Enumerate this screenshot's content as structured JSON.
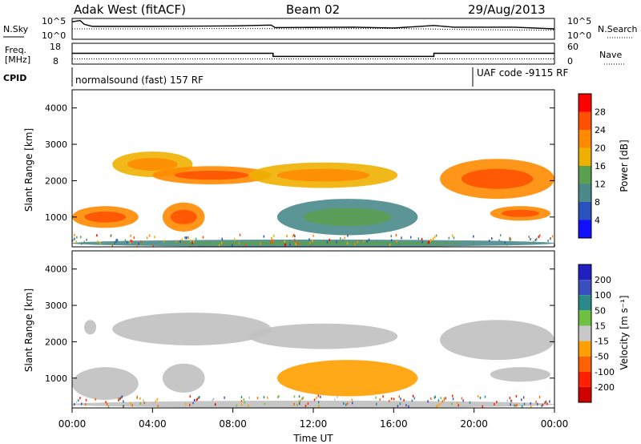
{
  "header": {
    "station": "Adak West (fitACF)",
    "beam": "Beam 02",
    "date": "29/Aug/2013"
  },
  "noise_panel": {
    "left_label": "N.Sky",
    "right_label": "N.Search",
    "left_ticks": [
      "10^5",
      "10^0"
    ],
    "right_ticks": [
      "10^5",
      "10^0"
    ]
  },
  "freq_panel": {
    "left_label_line1": "Freq.",
    "left_label_line2": "[MHz]",
    "right_label": "Nave",
    "left_ticks": [
      "18",
      "8"
    ],
    "right_ticks": [
      "60",
      "0"
    ]
  },
  "cpid_panel": {
    "label": "CPID",
    "segments": [
      {
        "text": "normalsound (fast) 157 RF",
        "start_hour": 0,
        "end_hour": 20
      },
      {
        "text": "UAF code -9115 RF",
        "start_hour": 20,
        "end_hour": 24
      }
    ]
  },
  "time_axis": {
    "label": "Time UT",
    "ticks": [
      "00:00",
      "04:00",
      "08:00",
      "12:00",
      "16:00",
      "20:00",
      "00:00"
    ]
  },
  "colors": {
    "power_scale": [
      "#1010ff",
      "#2a52be",
      "#4a8a8a",
      "#5aa050",
      "#f0b000",
      "#ff8a00",
      "#ff5000",
      "#ff0000"
    ],
    "velocity_scale": [
      "#2020c0",
      "#3a50c0",
      "#2a8a8a",
      "#70c040",
      "#c8c8c8",
      "#ffa000",
      "#ff6000",
      "#ff2000",
      "#d00000"
    ],
    "ground_scatter": "#c0c0c0"
  },
  "chart_data": [
    {
      "type": "line",
      "name": "noise",
      "x_unit": "hour UT",
      "xlim": [
        0,
        24
      ],
      "ylim": [
        0,
        5
      ],
      "y_scale": "log10",
      "series": [
        {
          "name": "N.Sky",
          "x": [
            0,
            0.4,
            0.6,
            1,
            4,
            8,
            9.9,
            10.1,
            14,
            16,
            18,
            19,
            22,
            24
          ],
          "y": [
            4.2,
            4.5,
            3.6,
            3.1,
            3.1,
            3.2,
            3.4,
            2.8,
            2.9,
            2.7,
            3.3,
            2.9,
            2.9,
            2.5
          ]
        },
        {
          "name": "N.Search",
          "x": [
            0,
            4,
            8,
            12,
            16,
            20,
            24
          ],
          "y": [
            2.5,
            2.5,
            2.6,
            2.5,
            2.6,
            2.3,
            2.2
          ]
        }
      ]
    },
    {
      "type": "line",
      "name": "frequency-nave",
      "x_unit": "hour UT",
      "xlim": [
        0,
        24
      ],
      "ylim": [
        8,
        18
      ],
      "y2lim": [
        0,
        60
      ],
      "series": [
        {
          "name": "Freq.",
          "x": [
            0,
            10,
            10,
            18,
            18,
            24
          ],
          "y": [
            13.2,
            13.2,
            11.7,
            11.7,
            13.2,
            13.2
          ]
        },
        {
          "name": "Nave",
          "x": [
            0,
            24
          ],
          "y": [
            10.5,
            10.5
          ]
        }
      ]
    },
    {
      "type": "heatmap",
      "name": "power",
      "ylabel": "Slant Range [km]",
      "xlabel": "Time UT",
      "xlim": [
        0,
        24
      ],
      "ylim": [
        180,
        4500
      ],
      "yticks": [
        1000,
        2000,
        3000,
        4000
      ],
      "colorbar": {
        "label": "Power [dB]",
        "ticks": [
          4,
          8,
          12,
          16,
          20,
          24,
          28
        ],
        "range": [
          0,
          32
        ]
      },
      "regions": [
        {
          "t0": 0.0,
          "t1": 3.3,
          "r0": 700,
          "r1": 1300,
          "value": 22
        },
        {
          "t0": 2.0,
          "t1": 6.0,
          "r0": 2100,
          "r1": 2800,
          "value": 17
        },
        {
          "t0": 4.0,
          "t1": 9.9,
          "r0": 1900,
          "r1": 2400,
          "value": 23
        },
        {
          "t0": 4.5,
          "t1": 6.6,
          "r0": 600,
          "r1": 1400,
          "value": 21
        },
        {
          "t0": 8.8,
          "t1": 16.2,
          "r0": 1800,
          "r1": 2500,
          "value": 16
        },
        {
          "t0": 10.2,
          "t1": 17.2,
          "r0": 500,
          "r1": 1500,
          "value": 8
        },
        {
          "t0": 18.3,
          "t1": 24.0,
          "r0": 1500,
          "r1": 2600,
          "value": 20
        },
        {
          "t0": 20.8,
          "t1": 23.8,
          "r0": 900,
          "r1": 1300,
          "value": 22
        },
        {
          "t0": 0.0,
          "t1": 24.0,
          "r0": 180,
          "r1": 380,
          "value": 10
        }
      ]
    },
    {
      "type": "heatmap",
      "name": "velocity",
      "ylabel": "Slant Range [km]",
      "xlabel": "Time UT",
      "xlim": [
        0,
        24
      ],
      "ylim": [
        180,
        4500
      ],
      "yticks": [
        1000,
        2000,
        3000,
        4000
      ],
      "colorbar": {
        "label": "Velocity [m s⁻¹]",
        "ticks": [
          200,
          100,
          50,
          15,
          -15,
          -50,
          -100,
          -200
        ],
        "range": [
          -250,
          250
        ]
      },
      "regions": [
        {
          "t0": 0.0,
          "t1": 3.3,
          "r0": 400,
          "r1": 1300,
          "value": 0
        },
        {
          "t0": 0.6,
          "t1": 1.2,
          "r0": 2200,
          "r1": 2600,
          "value": 0
        },
        {
          "t0": 2.0,
          "t1": 9.9,
          "r0": 1900,
          "r1": 2800,
          "value": 0
        },
        {
          "t0": 4.5,
          "t1": 6.6,
          "r0": 600,
          "r1": 1400,
          "value": 0
        },
        {
          "t0": 8.8,
          "t1": 16.2,
          "r0": 1800,
          "r1": 2500,
          "value": 0
        },
        {
          "t0": 10.2,
          "t1": 17.2,
          "r0": 500,
          "r1": 1500,
          "value": -60
        },
        {
          "t0": 18.3,
          "t1": 24.0,
          "r0": 1500,
          "r1": 2600,
          "value": 0
        },
        {
          "t0": 20.8,
          "t1": 23.8,
          "r0": 900,
          "r1": 1300,
          "value": 0
        },
        {
          "t0": 0.0,
          "t1": 24.0,
          "r0": 180,
          "r1": 380,
          "value": 0
        }
      ]
    }
  ]
}
